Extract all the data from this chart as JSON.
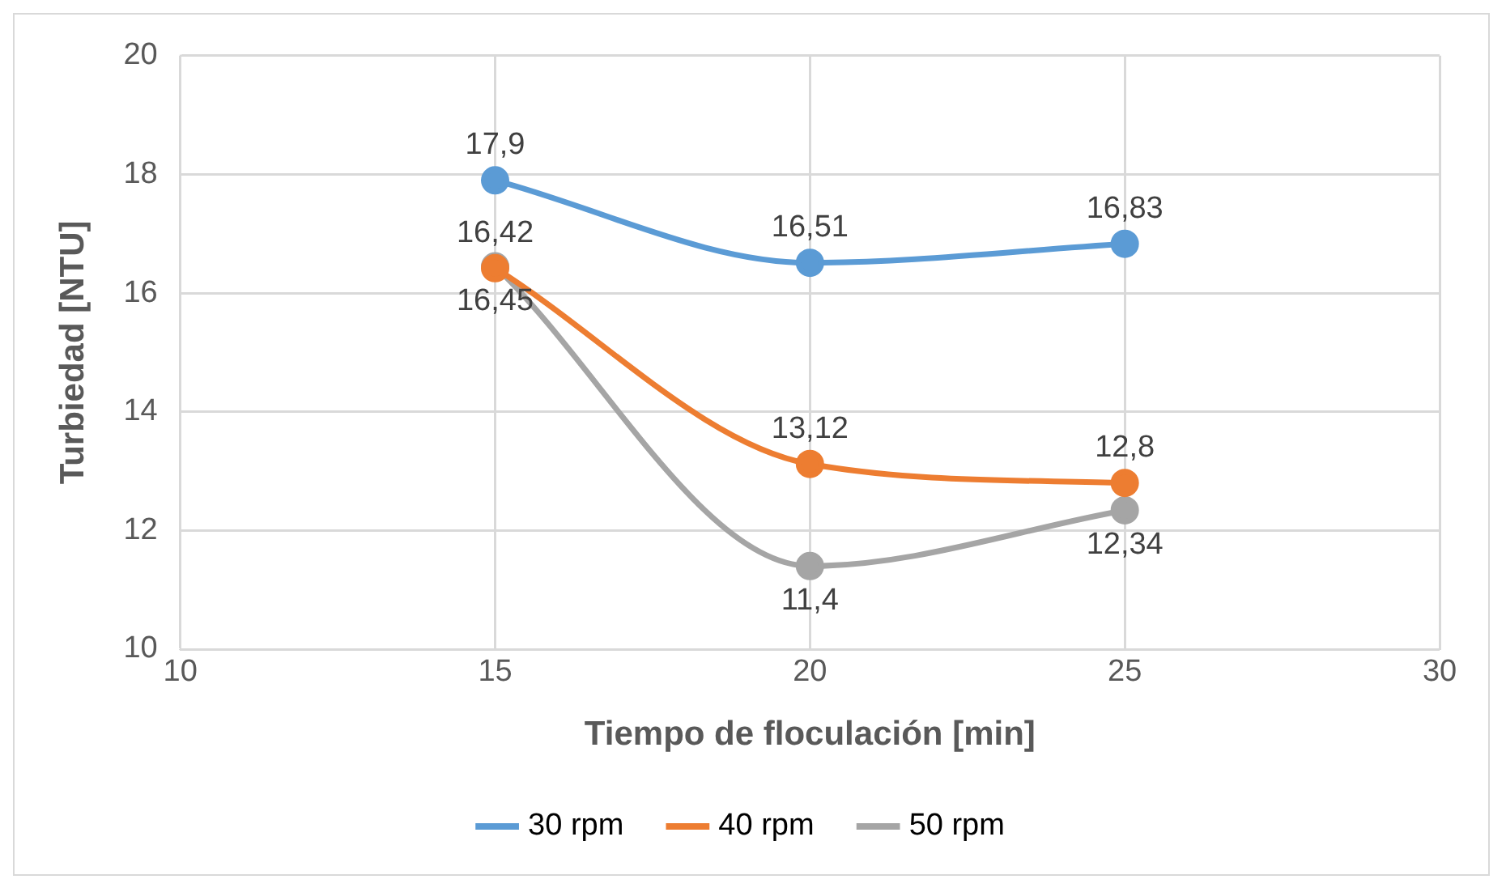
{
  "chart_data": {
    "type": "line",
    "xlabel": "Tiempo de floculación [min]",
    "ylabel": "Turbiedad [NTU]",
    "x": [
      15,
      20,
      25
    ],
    "xlim": [
      10,
      30
    ],
    "xticks": [
      10,
      15,
      20,
      25,
      30
    ],
    "ylim": [
      10,
      20
    ],
    "yticks": [
      10,
      12,
      14,
      16,
      18,
      20
    ],
    "grid": true,
    "legend": "bottom",
    "marker": "circle",
    "line_style": "solid",
    "series": [
      {
        "name": "30 rpm",
        "color": "#5b9bd5",
        "values": [
          17.9,
          16.51,
          16.83
        ],
        "value_labels": [
          "17,9",
          "16,51",
          "16,83"
        ]
      },
      {
        "name": "40 rpm",
        "color": "#ed7d31",
        "values": [
          16.42,
          13.12,
          12.8
        ],
        "value_labels": [
          "16,42",
          "13,12",
          "12,8"
        ]
      },
      {
        "name": "50 rpm",
        "color": "#a5a5a5",
        "values": [
          16.45,
          11.4,
          12.34
        ],
        "value_labels": [
          "16,45",
          "11,4",
          "12,34"
        ]
      }
    ]
  }
}
